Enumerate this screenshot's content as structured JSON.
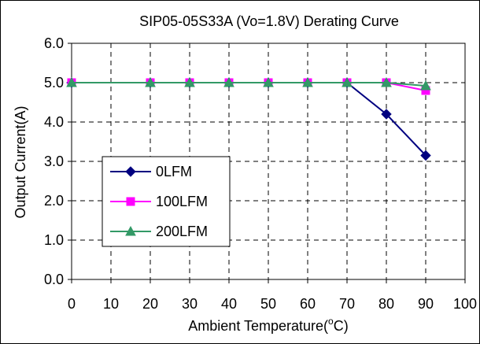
{
  "chart_data": {
    "type": "line",
    "title": "SIP05-05S33A (Vo=1.8V) Derating Curve",
    "xlabel_main": "Ambient Temperature(",
    "xlabel_sup": "o",
    "xlabel_end": "C)",
    "ylabel": "Output Current(A)",
    "xlim": [
      0,
      100
    ],
    "ylim": [
      0,
      6
    ],
    "x_ticks": [
      0,
      10,
      20,
      30,
      40,
      50,
      60,
      70,
      80,
      90,
      100
    ],
    "y_ticks": [
      "0.0",
      "1.0",
      "2.0",
      "3.0",
      "4.0",
      "5.0",
      "6.0"
    ],
    "grid": true,
    "legend_position": "left-middle",
    "series": [
      {
        "name": "0LFM",
        "color": "#000080",
        "marker": "diamond",
        "x": [
          0,
          20,
          30,
          40,
          50,
          60,
          70,
          80,
          90
        ],
        "y": [
          5.0,
          5.0,
          5.0,
          5.0,
          5.0,
          5.0,
          5.0,
          4.2,
          3.15
        ]
      },
      {
        "name": "100LFM",
        "color": "#ff00ff",
        "marker": "square",
        "x": [
          0,
          20,
          30,
          40,
          50,
          60,
          70,
          80,
          90
        ],
        "y": [
          5.0,
          5.0,
          5.0,
          5.0,
          5.0,
          5.0,
          5.0,
          5.0,
          4.8
        ]
      },
      {
        "name": "200LFM",
        "color": "#339966",
        "marker": "triangle",
        "x": [
          0,
          20,
          30,
          40,
          50,
          60,
          70,
          80,
          90
        ],
        "y": [
          5.0,
          5.0,
          5.0,
          5.0,
          5.0,
          5.0,
          5.0,
          5.0,
          4.92
        ]
      }
    ]
  }
}
